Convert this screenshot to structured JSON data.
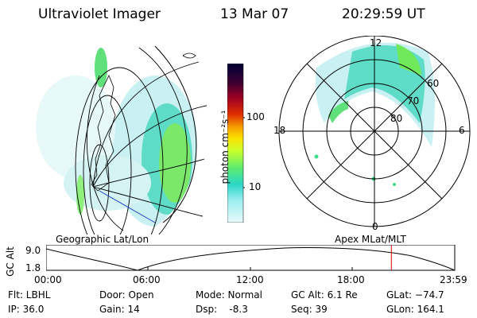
{
  "header": {
    "instrument": "Ultraviolet Imager",
    "date": "13 Mar 07",
    "time": "20:29:59 UT"
  },
  "colorbar": {
    "unit": "photon cm⁻²s⁻¹",
    "ticks": [
      "100",
      "10"
    ],
    "colors": [
      "#000033",
      "#3b0033",
      "#7a0022",
      "#c00018",
      "#e84000",
      "#f7a000",
      "#fbe100",
      "#c8ff2c",
      "#78f25a",
      "#33e0a0",
      "#2ad7c8",
      "#7de8e8",
      "#bff2f4",
      "#e6fafa"
    ]
  },
  "geo_map": {
    "label": "Geographic Lat/Lon"
  },
  "polar": {
    "label": "Apex MLat/MLT",
    "lat_labels": [
      "60",
      "70",
      "80"
    ],
    "mlt_labels": {
      "top": "12",
      "left": "18",
      "right": "6",
      "bottom": "0"
    }
  },
  "altitude_plot": {
    "ylabel": "GC Alt",
    "yticks": [
      "9.0",
      "1.8"
    ],
    "xticks": [
      "00:00",
      "06:00",
      "12:00",
      "18:00",
      "23:59"
    ],
    "current_time_fraction": 0.845
  },
  "footer": {
    "flt": "Flt: LBHL",
    "ip": "IP: 36.0",
    "door": "Door: Open",
    "gain": "Gain: 14",
    "mode": "Mode: Normal",
    "dsp": "Dsp:    -8.3",
    "gc_alt": "GC Alt: 6.1 Re",
    "seq": "Seq: 39",
    "glat": "GLat: −74.7",
    "glon": "GLon: 164.1"
  }
}
